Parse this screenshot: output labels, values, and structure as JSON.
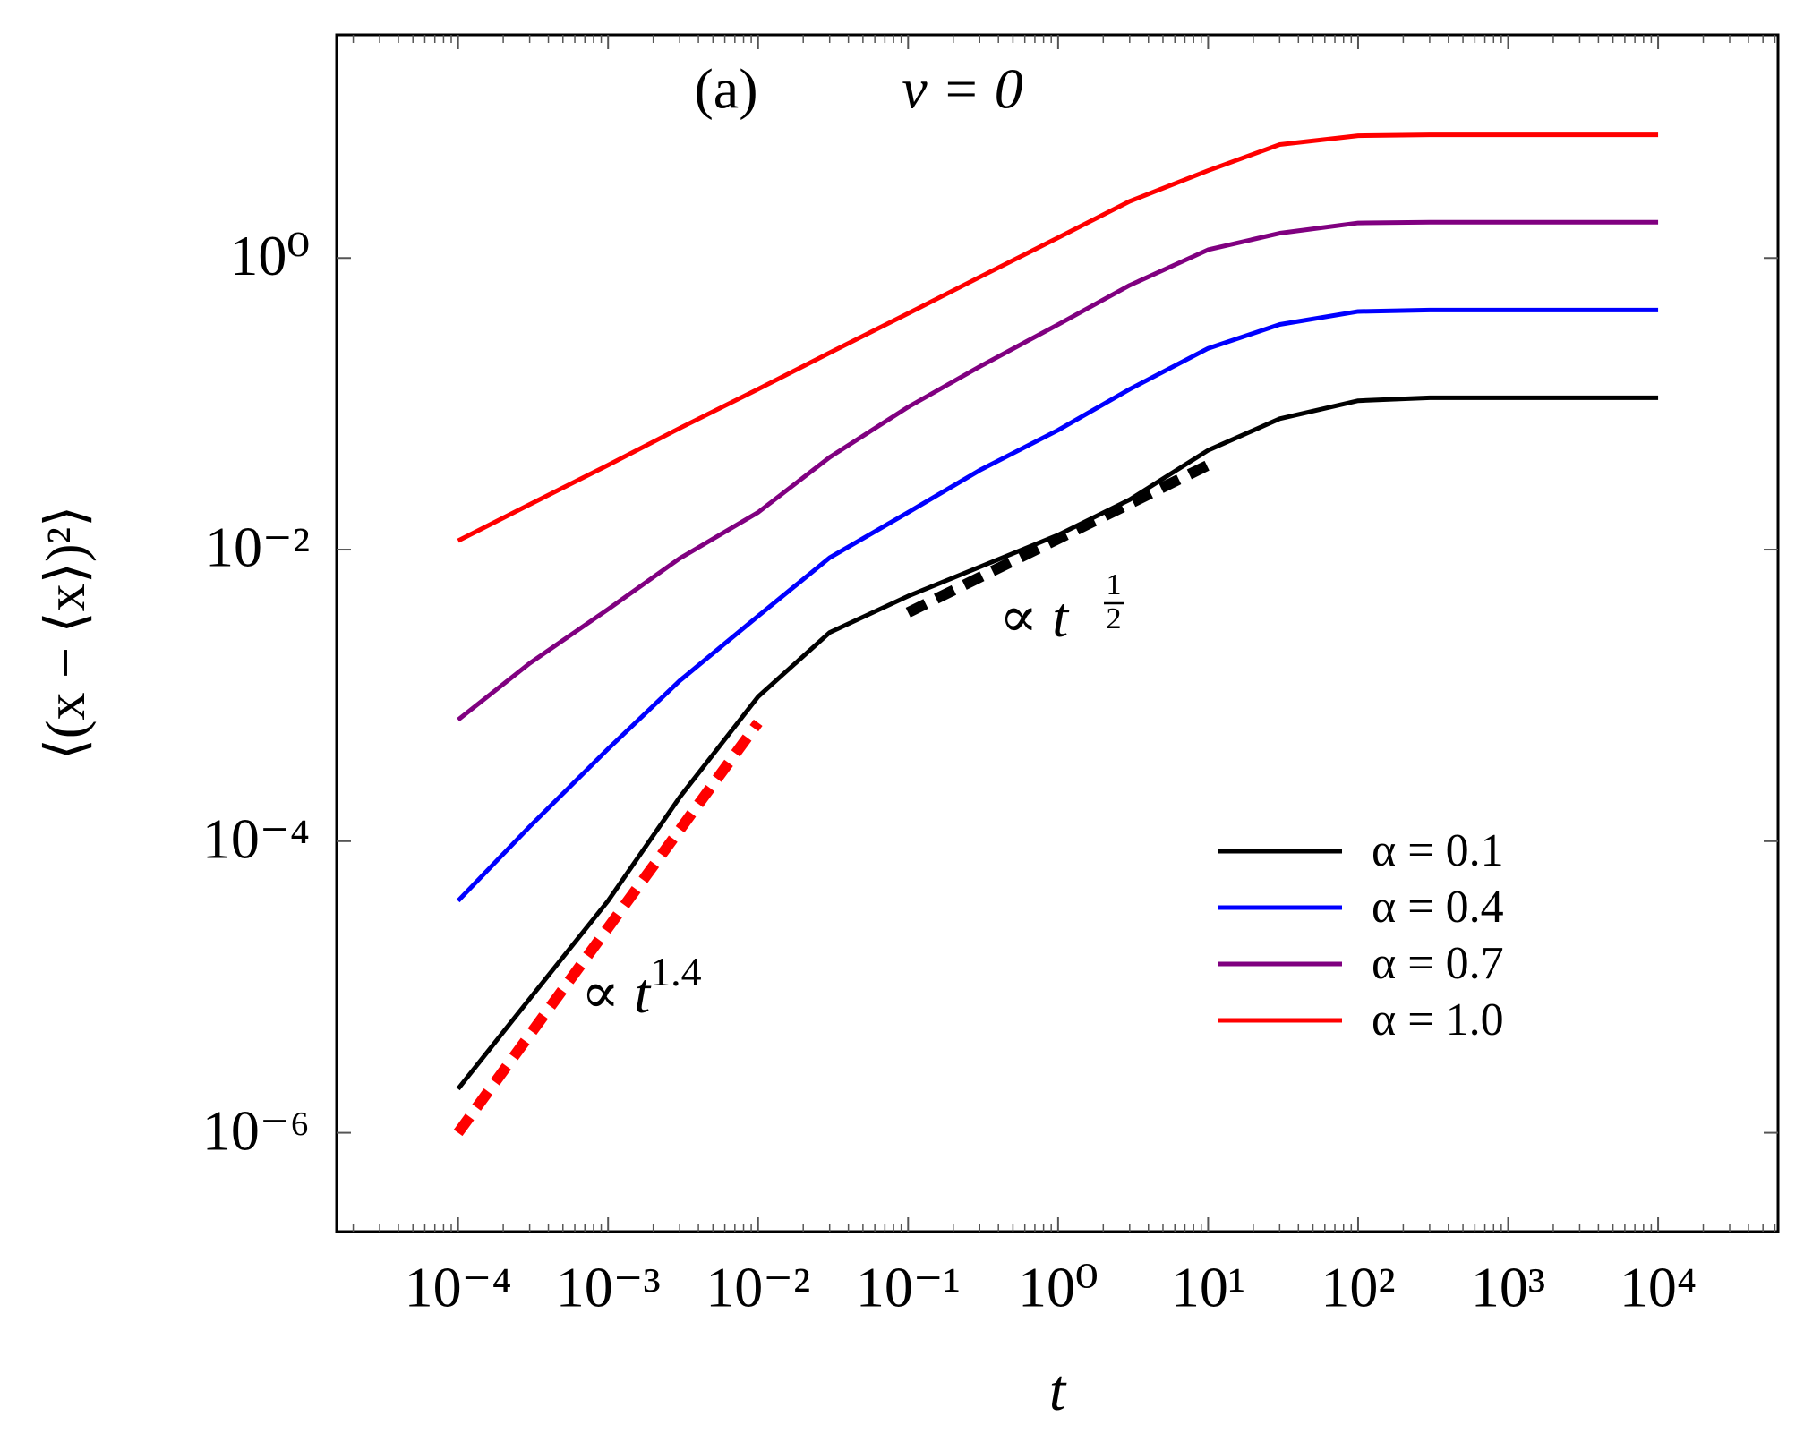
{
  "chart_data": {
    "type": "line",
    "panel_label": "(a)",
    "title": "v = 0",
    "xlabel": "t",
    "ylabel": "⟨(x − ⟨x⟩)²⟩",
    "log_x": true,
    "log_y": true,
    "xlim": [
      1.55e-05,
      63000.0
    ],
    "ylim": [
      2.1e-07,
      33.9
    ],
    "xticks": [
      {
        "value": 0.0001,
        "label": "10⁻⁴"
      },
      {
        "value": 0.001,
        "label": "10⁻³"
      },
      {
        "value": 0.01,
        "label": "10⁻²"
      },
      {
        "value": 0.1,
        "label": "10⁻¹"
      },
      {
        "value": 1,
        "label": "10⁰"
      },
      {
        "value": 10,
        "label": "10¹"
      },
      {
        "value": 100,
        "label": "10²"
      },
      {
        "value": 1000,
        "label": "10³"
      },
      {
        "value": 10000,
        "label": "10⁴"
      }
    ],
    "yticks": [
      {
        "value": 1e-06,
        "label": "10⁻⁶"
      },
      {
        "value": 0.0001,
        "label": "10⁻⁴"
      },
      {
        "value": 0.01,
        "label": "10⁻²"
      },
      {
        "value": 1,
        "label": "10⁰"
      }
    ],
    "x": [
      0.0001,
      0.0003,
      0.001,
      0.003,
      0.01,
      0.03,
      0.1,
      0.3,
      1,
      3,
      10,
      30,
      100,
      300,
      1000,
      10000
    ],
    "series": [
      {
        "name": "α = 0.1",
        "color": "#000000",
        "values": [
          2e-06,
          8.3e-06,
          3.9e-05,
          0.0002,
          0.00098,
          0.0027,
          0.0048,
          0.0076,
          0.0126,
          0.022,
          0.048,
          0.079,
          0.105,
          0.11,
          0.11,
          0.11
        ]
      },
      {
        "name": "α = 0.4",
        "color": "#0000ff",
        "values": [
          3.9e-05,
          0.000126,
          0.00043,
          0.00126,
          0.0035,
          0.0088,
          0.018,
          0.035,
          0.066,
          0.126,
          0.24,
          0.35,
          0.43,
          0.44,
          0.44,
          0.44
        ]
      },
      {
        "name": "α = 0.7",
        "color": "#800080",
        "values": [
          0.00068,
          0.00166,
          0.0039,
          0.0087,
          0.018,
          0.043,
          0.095,
          0.18,
          0.35,
          0.65,
          1.14,
          1.48,
          1.74,
          1.76,
          1.76,
          1.76
        ]
      },
      {
        "name": "α = 1.0",
        "color": "#ff0000",
        "values": [
          0.0115,
          0.0204,
          0.038,
          0.068,
          0.126,
          0.224,
          0.417,
          0.74,
          1.38,
          2.45,
          3.98,
          6.0,
          6.9,
          7.0,
          7.0,
          7.0
        ]
      }
    ],
    "reference_lines": [
      {
        "color": "#ff0000",
        "x": [
          0.0001,
          0.01
        ],
        "values": [
          1e-06,
          0.00065
        ],
        "label": {
          "text": "∝ t",
          "exponent": "1.4"
        }
      },
      {
        "color": "#000000",
        "x": [
          0.1,
          10
        ],
        "values": [
          0.0037,
          0.038
        ],
        "label": {
          "text": "∝ t",
          "numerator": "1",
          "denominator": "2"
        }
      }
    ],
    "legend": "lower right"
  }
}
